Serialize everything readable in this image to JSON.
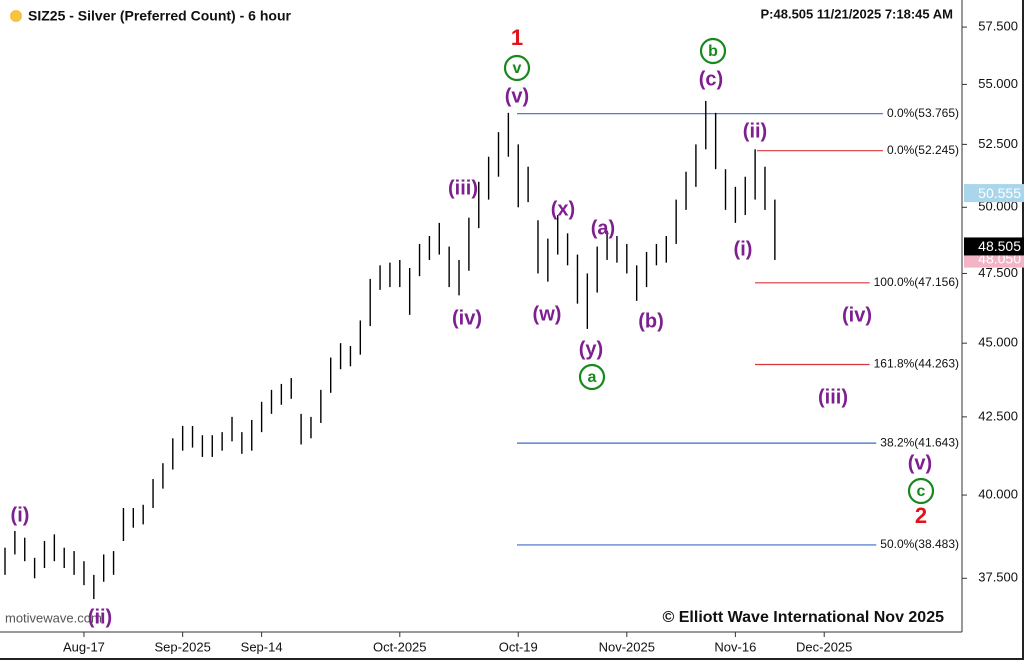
{
  "chart_data": {
    "type": "ohlc",
    "title": "SIZ25 - Silver (Preferred Count) - 6 hour",
    "status": "P:48.505  11/21/2025 7:18:45 AM",
    "copyright": "© Elliott Wave International Nov 2025",
    "watermark": "motivewave.com",
    "color": "#000000",
    "log_scale": true,
    "grid": false,
    "categories": [
      null,
      null,
      null,
      null,
      null,
      null,
      null,
      null,
      "Aug-17",
      null,
      null,
      null,
      null,
      null,
      null,
      null,
      null,
      null,
      "Sep-2025",
      null,
      null,
      null,
      null,
      null,
      null,
      null,
      "Sep-14",
      null,
      null,
      null,
      null,
      null,
      null,
      null,
      null,
      null,
      null,
      null,
      null,
      null,
      "Oct-2025",
      null,
      null,
      null,
      null,
      null,
      null,
      null,
      null,
      null,
      null,
      null,
      "Oct-19",
      null,
      null,
      null,
      null,
      null,
      null,
      null,
      null,
      null,
      null,
      "Nov-2025",
      null,
      null,
      null,
      null,
      null,
      null,
      null,
      null,
      null,
      null,
      "Nov-16",
      null,
      null,
      null,
      null,
      null,
      null,
      null,
      null,
      "Dec-2025",
      null,
      null,
      null,
      null,
      null,
      null,
      null,
      null,
      null,
      null,
      null,
      null,
      null
    ],
    "high": [
      38.4,
      38.9,
      38.7,
      38.1,
      38.6,
      38.8,
      38.4,
      38.3,
      38.0,
      37.6,
      38.2,
      38.3,
      39.6,
      39.6,
      39.7,
      40.5,
      41.0,
      41.8,
      42.2,
      42.2,
      41.9,
      41.9,
      42.0,
      42.5,
      42.0,
      42.4,
      43.0,
      43.4,
      43.6,
      43.8,
      42.6,
      42.5,
      43.4,
      44.5,
      45.0,
      44.9,
      45.8,
      47.3,
      47.8,
      47.9,
      48.0,
      47.7,
      48.6,
      48.9,
      49.4,
      48.5,
      48.0,
      49.6,
      51.0,
      52.0,
      53.0,
      53.8,
      52.5,
      51.6,
      49.5,
      48.8,
      49.7,
      49.0,
      48.2,
      47.5,
      48.5,
      49.1,
      48.9,
      48.6,
      47.8,
      48.3,
      48.6,
      48.9,
      50.3,
      51.4,
      52.5,
      54.3,
      53.8,
      51.5,
      50.8,
      51.2,
      52.3,
      51.6,
      50.3,
      null,
      null,
      null,
      null,
      null,
      null,
      null,
      null,
      null,
      null,
      null,
      null,
      null,
      null,
      null,
      null,
      null,
      null
    ],
    "low": [
      37.6,
      38.2,
      38.0,
      37.5,
      37.8,
      38.0,
      37.8,
      37.6,
      37.3,
      36.9,
      37.4,
      37.6,
      38.6,
      39.0,
      39.1,
      39.6,
      40.2,
      40.8,
      41.4,
      41.5,
      41.2,
      41.2,
      41.4,
      41.7,
      41.3,
      41.4,
      42.0,
      42.6,
      42.9,
      43.1,
      41.6,
      41.8,
      42.3,
      43.3,
      44.1,
      44.2,
      44.6,
      45.6,
      46.9,
      47.0,
      47.0,
      46.0,
      47.4,
      48.0,
      48.2,
      47.0,
      46.7,
      47.6,
      49.2,
      50.3,
      51.2,
      52.0,
      50.0,
      50.2,
      47.5,
      47.2,
      48.2,
      47.8,
      46.4,
      45.5,
      46.8,
      48.0,
      47.9,
      47.5,
      46.5,
      47.0,
      47.8,
      47.9,
      48.6,
      49.9,
      50.8,
      52.3,
      51.5,
      49.9,
      49.4,
      49.7,
      50.3,
      49.9,
      48.0,
      null,
      null,
      null,
      null,
      null,
      null,
      null,
      null,
      null,
      null,
      null,
      null,
      null,
      null,
      null,
      null,
      null,
      null
    ],
    "ylim": [
      35.97,
      58.72
    ],
    "yticks": [
      {
        "value": 37.5,
        "label": "37.500"
      },
      {
        "value": 40,
        "label": "40.000"
      },
      {
        "value": 42.5,
        "label": "42.500"
      },
      {
        "value": 45,
        "label": "45.000"
      },
      {
        "value": 47.5,
        "label": "47.500"
      },
      {
        "value": 50,
        "label": "50.000"
      },
      {
        "value": 52.5,
        "label": "52.500"
      },
      {
        "value": 55,
        "label": "55.000"
      },
      {
        "value": 57.5,
        "label": "57.500"
      }
    ],
    "price_tags": [
      {
        "value": 50.555,
        "label": "50.555",
        "color": "#a9d6ea"
      },
      {
        "value": 48.05,
        "label": "48.050",
        "color": "#f3b5c6"
      },
      {
        "value": 48.505,
        "label": "48.505",
        "color": "#000000"
      }
    ],
    "fib_levels": [
      {
        "value": 53.765,
        "label": "0.0%(53.765)",
        "color": "#3b6cc9"
      },
      {
        "value": 52.245,
        "label": "0.0%(52.245)",
        "color": "#d9363e"
      },
      {
        "value": 47.156,
        "label": "100.0%(47.156)",
        "color": "#d9363e"
      },
      {
        "value": 44.263,
        "label": "161.8%(44.263)",
        "color": "#d9363e"
      },
      {
        "value": 41.643,
        "label": "38.2%(41.643)",
        "color": "#3b6cc9"
      },
      {
        "value": 38.483,
        "label": "50.0%(38.483)",
        "color": "#3b6cc9"
      }
    ],
    "wave_labels": [
      {
        "text": "(i)",
        "color": "#7d1f8f"
      },
      {
        "text": "(ii)",
        "color": "#7d1f8f"
      },
      {
        "text": "(iii)",
        "color": "#7d1f8f"
      },
      {
        "text": "(iv)",
        "color": "#7d1f8f"
      },
      {
        "text": "(v)",
        "color": "#7d1f8f"
      },
      {
        "text": "v",
        "color": "#17891c",
        "circled": true
      },
      {
        "text": "1",
        "color": "#e3121b"
      },
      {
        "text": "(x)",
        "color": "#7d1f8f"
      },
      {
        "text": "(w)",
        "color": "#7d1f8f"
      },
      {
        "text": "(a)",
        "color": "#7d1f8f"
      },
      {
        "text": "(y)",
        "color": "#7d1f8f"
      },
      {
        "text": "a",
        "color": "#17891c",
        "circled": true
      },
      {
        "text": "(b)",
        "color": "#7d1f8f"
      },
      {
        "text": "(c)",
        "color": "#7d1f8f"
      },
      {
        "text": "b",
        "color": "#17891c",
        "circled": true
      },
      {
        "text": "(ii)",
        "color": "#7d1f8f"
      },
      {
        "text": "(i)",
        "color": "#7d1f8f"
      },
      {
        "text": "(iv)",
        "color": "#7d1f8f"
      },
      {
        "text": "(iii)",
        "color": "#7d1f8f"
      },
      {
        "text": "(v)",
        "color": "#7d1f8f"
      },
      {
        "text": "c",
        "color": "#17891c",
        "circled": true
      },
      {
        "text": "2",
        "color": "#e3121b"
      }
    ]
  }
}
